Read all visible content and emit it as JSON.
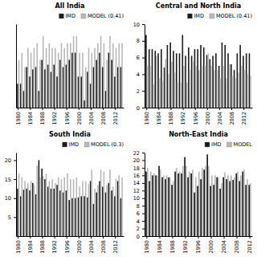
{
  "chart_data": [
    {
      "type": "bar",
      "title": "All India",
      "categories": [
        "1980",
        null,
        null,
        null,
        "1984",
        null,
        null,
        null,
        "1988",
        null,
        null,
        null,
        "1992",
        null,
        null,
        null,
        "1996",
        null,
        null,
        null,
        "2000",
        null,
        null,
        null,
        "2004",
        null,
        null,
        null,
        "2008",
        null,
        null,
        null,
        "2012",
        null,
        null
      ],
      "series": [
        {
          "name": "IMD",
          "color": "#1a1a1a",
          "values": [
            6.5,
            6.5,
            6.2,
            7.2,
            6.8,
            7.1,
            7.2,
            6.2,
            7.5,
            7.1,
            7.3,
            7.0,
            7.3,
            6.8,
            7.5,
            7.2,
            7.3,
            7.5,
            7.8,
            7.8,
            6.8,
            6.8,
            5.8,
            7.0,
            6.5,
            7.2,
            7.5,
            7.8,
            7.2,
            6.2,
            7.8,
            7.5,
            6.8,
            7.2,
            7.2
          ]
        },
        {
          "name": "MODEL (0.41)",
          "color": "#b8b8b8",
          "values": [
            7.5,
            7.8,
            7.2,
            8.0,
            7.8,
            8.0,
            8.2,
            7.5,
            8.5,
            8.0,
            8.2,
            8.0,
            8.0,
            7.8,
            8.2,
            8.0,
            8.2,
            8.2,
            8.5,
            8.5,
            7.8,
            7.8,
            7.2,
            8.0,
            7.8,
            8.0,
            8.2,
            8.5,
            8.2,
            7.5,
            8.5,
            8.2,
            8.0,
            8.2,
            8.2
          ]
        }
      ],
      "ylim": [
        5.5,
        9.0
      ],
      "tick_labels": "x",
      "legend": "upper right"
    },
    {
      "type": "bar",
      "title": "Central and North India",
      "categories": [
        "1980",
        null,
        null,
        null,
        "1984",
        null,
        null,
        null,
        "1988",
        null,
        null,
        null,
        "1992",
        null,
        null,
        null,
        "1996",
        null,
        null,
        null,
        "2000",
        null,
        null,
        null,
        "2004",
        null,
        null,
        null,
        "2008",
        null,
        null,
        null,
        "2012",
        null,
        null
      ],
      "series": [
        {
          "name": "IMD",
          "color": "#1a1a1a",
          "values": [
            8.7,
            7.0,
            7.0,
            6.8,
            6.5,
            7.0,
            4.8,
            7.5,
            7.8,
            6.8,
            6.5,
            6.5,
            8.7,
            6.2,
            7.2,
            6.2,
            7.0,
            7.0,
            7.5,
            7.2,
            6.3,
            5.8,
            6.2,
            6.5,
            5.0,
            7.8,
            7.5,
            6.5,
            5.2,
            4.5,
            6.5,
            7.5,
            6.2,
            6.5,
            6.5
          ]
        },
        {
          "name": "MODEL (0.41)",
          "color": "#b8b8b8",
          "values": [
            5.0,
            5.0,
            2.8,
            6.2,
            3.5,
            3.2,
            5.8,
            4.0,
            5.5,
            4.2,
            3.0,
            3.0,
            5.0,
            3.0,
            4.5,
            5.5,
            5.0,
            4.5,
            5.0,
            5.0,
            6.5,
            5.0,
            4.5,
            4.5,
            3.5,
            5.0,
            3.5,
            5.2,
            3.8,
            3.5,
            4.2,
            5.0,
            4.5,
            4.0,
            3.8
          ]
        }
      ],
      "ylim": [
        0,
        10
      ],
      "yticks": [
        0,
        2,
        4,
        6,
        8,
        10
      ],
      "legend": "upper right"
    },
    {
      "type": "bar",
      "title": "South India",
      "categories": [
        "1980",
        null,
        null,
        null,
        "1984",
        null,
        null,
        null,
        "1988",
        null,
        null,
        null,
        "1992",
        null,
        null,
        null,
        "1996",
        null,
        null,
        null,
        "2000",
        null,
        null,
        null,
        "2004",
        null,
        null,
        null,
        "2008",
        null,
        null,
        null,
        "2012",
        null,
        null
      ],
      "series": [
        {
          "name": "IMD",
          "color": "#1a1a1a",
          "values": [
            12.5,
            10.5,
            12.2,
            12.5,
            12.0,
            14.0,
            11.0,
            20.0,
            17.8,
            15.0,
            13.0,
            12.5,
            12.5,
            13.5,
            12.0,
            11.5,
            12.0,
            9.5,
            10.0,
            10.0,
            10.2,
            10.5,
            10.5,
            10.2,
            14.5,
            8.5,
            11.5,
            14.5,
            13.0,
            11.5,
            14.0,
            12.0,
            10.5,
            14.5,
            10.0
          ]
        },
        {
          "name": "MODEL (0.3)",
          "color": "#b8b8b8",
          "values": [
            16.5,
            15.5,
            14.5,
            14.0,
            14.5,
            13.5,
            18.5,
            15.5,
            15.8,
            16.5,
            14.5,
            15.0,
            14.0,
            15.5,
            15.0,
            15.5,
            16.5,
            15.0,
            15.0,
            15.5,
            13.0,
            14.5,
            14.5,
            13.8,
            17.5,
            12.5,
            13.5,
            17.5,
            17.0,
            13.5,
            17.5,
            13.0,
            15.0,
            16.0,
            15.5
          ]
        }
      ],
      "ylim": [
        0,
        22
      ],
      "yticks": [
        5,
        10,
        15,
        20
      ],
      "legend": "upper right"
    },
    {
      "type": "bar",
      "title": "North-East India",
      "categories": [
        "1980",
        null,
        null,
        null,
        "1984",
        null,
        null,
        null,
        "1988",
        null,
        null,
        null,
        "1992",
        null,
        null,
        null,
        "1996",
        null,
        null,
        null,
        "2000",
        null,
        null,
        null,
        "2004",
        null,
        null,
        null,
        "2008",
        null,
        null,
        null,
        "2012"
      ],
      "series": [
        {
          "name": "IMD",
          "color": "#1a1a1a",
          "values": [
            17.0,
            14.5,
            16.0,
            16.0,
            18.5,
            15.5,
            15.0,
            15.5,
            13.5,
            17.0,
            16.5,
            16.5,
            20.8,
            15.5,
            16.5,
            11.5,
            13.2,
            15.0,
            17.5,
            21.5,
            13.2,
            13.5,
            15.5,
            12.5,
            15.5,
            15.0,
            14.5,
            14.8,
            16.5,
            14.5,
            17.0,
            13.5,
            13.5
          ]
        },
        {
          "name": "MODEL",
          "color": "#b8b8b8",
          "values": [
            18.0,
            17.0,
            16.5,
            16.0,
            17.5,
            16.0,
            16.0,
            15.5,
            14.5,
            18.0,
            17.0,
            18.5,
            18.5,
            17.0,
            17.5,
            15.5,
            17.0,
            18.0,
            18.5,
            18.5,
            16.0,
            16.0,
            15.5,
            14.0,
            16.8,
            16.0,
            16.0,
            15.5,
            17.0,
            16.0,
            17.5,
            15.0,
            14.0
          ]
        }
      ],
      "ylim": [
        0,
        22
      ],
      "yticks": [
        0,
        2,
        4,
        6,
        8,
        10,
        12,
        14,
        16,
        18,
        20,
        22
      ],
      "legend": "upper right"
    }
  ]
}
